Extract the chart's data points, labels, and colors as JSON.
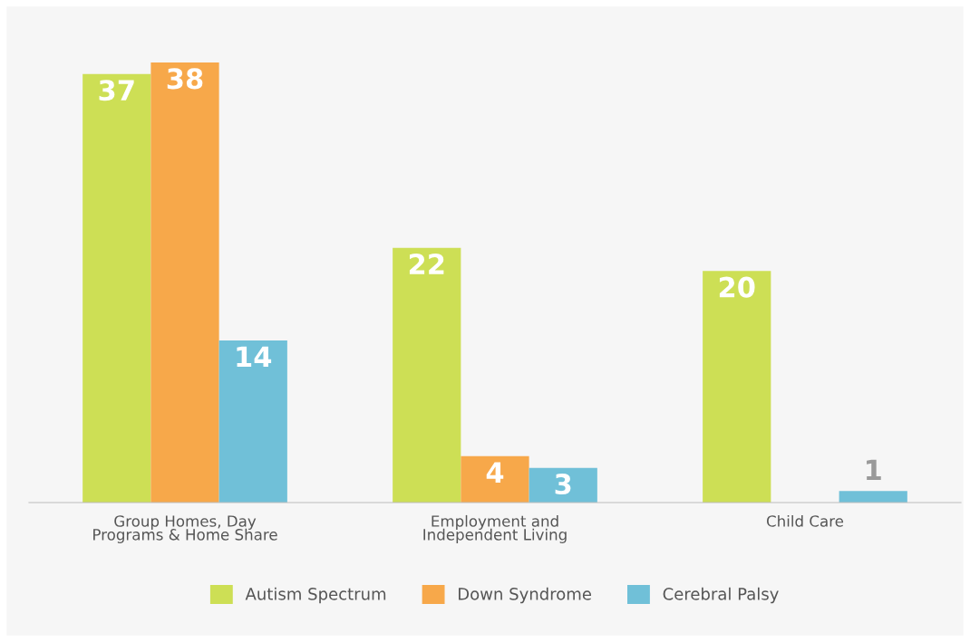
{
  "chart_data": {
    "type": "bar",
    "categories": [
      "Group Homes, Day\nPrograms & Home Share",
      "Employment and\nIndependent Living",
      "Child Care"
    ],
    "series": [
      {
        "name": "Autism Spectrum",
        "color": "#cddf55",
        "values": [
          37,
          22,
          20
        ]
      },
      {
        "name": "Down Syndrome",
        "color": "#f7a84a",
        "values": [
          38,
          4,
          null
        ]
      },
      {
        "name": "Cerebral Palsy",
        "color": "#70c0d8",
        "values": [
          14,
          3,
          1
        ]
      }
    ],
    "data_labels": true,
    "legend": "bottom",
    "grid": false
  }
}
